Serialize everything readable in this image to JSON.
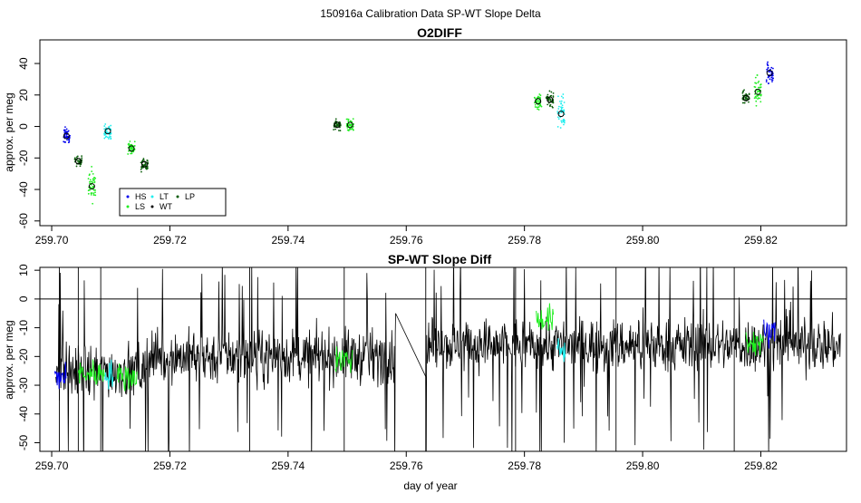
{
  "main_title": "150916a   Calibration Data SP-WT Slope Delta",
  "colors": {
    "HS": "#0000ee",
    "LS": "#22ee22",
    "LT": "#22eeee",
    "WT": "#000000",
    "LP": "#0b5e0b",
    "line": "#000000"
  },
  "chart_data": [
    {
      "type": "scatter",
      "title": "O2DIFF",
      "ylabel": "approx. per meg",
      "xlabel": "",
      "xlim": [
        259.698,
        259.8345
      ],
      "ylim": [
        -63,
        55
      ],
      "x_ticks": [
        "259.70",
        "259.72",
        "259.74",
        "259.76",
        "259.78",
        "259.80",
        "259.82"
      ],
      "x_tick_values": [
        259.7,
        259.72,
        259.74,
        259.76,
        259.78,
        259.8,
        259.82
      ],
      "y_ticks": [
        "-60",
        "-40",
        "-20",
        "0",
        "20",
        "40"
      ],
      "y_tick_values": [
        -60,
        -40,
        -20,
        0,
        20,
        40
      ],
      "legend": {
        "placement": "bottom-left",
        "entries": [
          "HS",
          "LT",
          "LP",
          "LS",
          "WT"
        ]
      },
      "clusters": [
        {
          "series": "HS",
          "x": 259.7025,
          "mean": -6,
          "spread": 7
        },
        {
          "series": "LP",
          "x": 259.7045,
          "mean": -22,
          "spread": 4
        },
        {
          "series": "LS",
          "x": 259.7068,
          "mean": -38,
          "spread": 15
        },
        {
          "series": "LT",
          "x": 259.7095,
          "mean": -3,
          "spread": 6
        },
        {
          "series": "LS",
          "x": 259.7135,
          "mean": -14,
          "spread": 6
        },
        {
          "series": "LP",
          "x": 259.7157,
          "mean": -24,
          "spread": 6
        },
        {
          "series": "LP",
          "x": 259.7483,
          "mean": 1,
          "spread": 4
        },
        {
          "series": "LS",
          "x": 259.7505,
          "mean": 1,
          "spread": 6
        },
        {
          "series": "LS",
          "x": 259.7823,
          "mean": 16,
          "spread": 7
        },
        {
          "series": "LP",
          "x": 259.7843,
          "mean": 17,
          "spread": 7
        },
        {
          "series": "LT",
          "x": 259.7862,
          "mean": 8,
          "spread": 15
        },
        {
          "series": "LP",
          "x": 259.8175,
          "mean": 18,
          "spread": 6
        },
        {
          "series": "LS",
          "x": 259.8195,
          "mean": 22,
          "spread": 12
        },
        {
          "series": "HS",
          "x": 259.8215,
          "mean": 34,
          "spread": 10
        }
      ]
    },
    {
      "type": "line",
      "title": "SP-WT Slope Diff",
      "ylabel": "approx. per meg",
      "xlabel": "day of year",
      "xlim": [
        259.698,
        259.8345
      ],
      "ylim": [
        -53,
        11
      ],
      "x_ticks": [
        "259.70",
        "259.72",
        "259.74",
        "259.76",
        "259.78",
        "259.80",
        "259.82"
      ],
      "x_tick_values": [
        259.7,
        259.72,
        259.74,
        259.76,
        259.78,
        259.8,
        259.82
      ],
      "y_ticks": [
        "-50",
        "-40",
        "-30",
        "-20",
        "-10",
        "0",
        "10"
      ],
      "y_tick_values": [
        -50,
        -40,
        -30,
        -20,
        -10,
        0,
        10
      ],
      "reference_line": 0,
      "x_range": [
        259.7007,
        259.8335
      ],
      "gap": [
        259.7582,
        259.7633
      ],
      "gap_endpoints": [
        -5,
        -27
      ],
      "mean": -21,
      "segment_means": [
        {
          "x_from": 259.7005,
          "x_to": 259.716,
          "mean": -25
        },
        {
          "x_from": 259.716,
          "x_to": 259.7582,
          "mean": -20
        },
        {
          "x_from": 259.7633,
          "x_to": 259.8335,
          "mean": -16
        }
      ],
      "overlay_segments": [
        {
          "series": "HS",
          "x_from": 259.7005,
          "x_to": 259.7025,
          "mean": -27
        },
        {
          "series": "LS",
          "x_from": 259.7045,
          "x_to": 259.709,
          "mean": -26
        },
        {
          "series": "LT",
          "x_from": 259.709,
          "x_to": 259.7105,
          "mean": -26
        },
        {
          "series": "LS",
          "x_from": 259.711,
          "x_to": 259.7145,
          "mean": -27
        },
        {
          "series": "LS",
          "x_from": 259.748,
          "x_to": 259.751,
          "mean": -21
        },
        {
          "series": "LS",
          "x_from": 259.782,
          "x_to": 259.785,
          "mean": -7
        },
        {
          "series": "LT",
          "x_from": 259.7855,
          "x_to": 259.787,
          "mean": -18
        },
        {
          "series": "LS",
          "x_from": 259.8175,
          "x_to": 259.8205,
          "mean": -15
        },
        {
          "series": "HS",
          "x_from": 259.8205,
          "x_to": 259.8225,
          "mean": -12
        }
      ]
    }
  ]
}
